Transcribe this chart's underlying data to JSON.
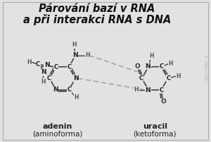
{
  "title_line1": "Párování bazí v RNA",
  "title_line2": "a při interakci RNA s DNA",
  "title_fontsize": 10.5,
  "title_fontstyle": "italic",
  "title_fontweight": "bold",
  "bg_color": "#e2e2e2",
  "label_adenin": "adenin",
  "label_adenin2": "(aminoforma)",
  "label_uracil": "uracil",
  "label_uracil2": "(ketoforma)",
  "label_fontsize": 8,
  "label_fontsize2": 7.5,
  "copyright": "© 2001 TGU",
  "bond_color": "#444444",
  "atom_color": "#222222",
  "hbond_color": "#999999"
}
